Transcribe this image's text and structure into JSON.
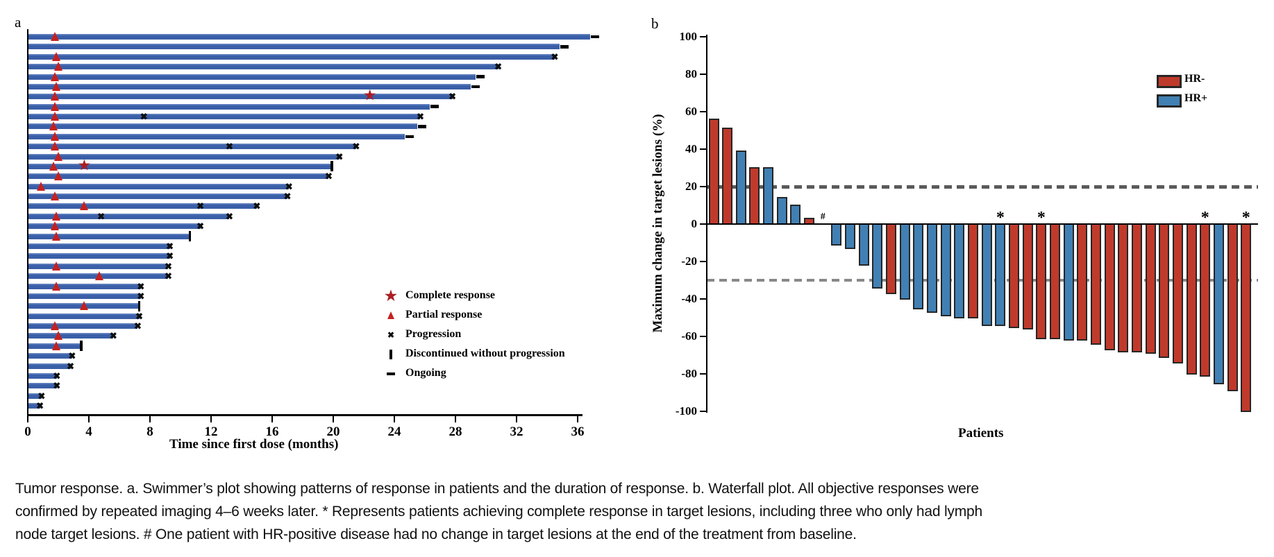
{
  "caption": {
    "lines": [
      "Tumor response. a. Swimmer’s plot showing patterns of response in patients and the duration of response. b. Waterfall plot. All objective responses were",
      "confirmed by repeated imaging 4–6 weeks later. * Represents patients achieving complete response in target lesions, including three who only had lymph",
      "node target lesions. # One patient with HR-positive disease had no change in target lesions at the end of the treatment from baseline."
    ]
  },
  "colors": {
    "swimmer_bar": "#3a5fa8",
    "hr_negative": "#c03a2b",
    "hr_positive": "#4180b4",
    "triangle_red": "#c5211f",
    "star_red": "#aa1e24",
    "black": "#0d0d0d",
    "dash_plus20": "#5a5a5a",
    "dash_minus30": "#888888",
    "bar_outline": "#262626"
  },
  "chart_data": [
    {
      "type": "swimmer-bar",
      "title": "a",
      "xlabel": "Time since first dose (months)",
      "x_ticks": [
        0,
        4,
        8,
        12,
        16,
        20,
        24,
        28,
        32,
        36
      ],
      "xlim": [
        0,
        37.5
      ],
      "legend": [
        {
          "marker": "star",
          "label": "Complete response"
        },
        {
          "marker": "triangle",
          "label": "Partial response"
        },
        {
          "marker": "x",
          "label": "Progression"
        },
        {
          "marker": "tick",
          "label": "Discontinued without progression"
        },
        {
          "marker": "dash",
          "label": "Ongoing"
        }
      ],
      "patients": [
        {
          "months": 36.8,
          "pr": 1.8,
          "end": "ongoing"
        },
        {
          "months": 34.8,
          "end": "ongoing"
        },
        {
          "months": 34.5,
          "pr": 1.9,
          "end": "progression"
        },
        {
          "months": 30.8,
          "pr": 2.0,
          "end": "progression"
        },
        {
          "months": 29.3,
          "pr": 1.8,
          "end": "ongoing"
        },
        {
          "months": 29.0,
          "pr": 1.9,
          "end": "ongoing"
        },
        {
          "months": 27.8,
          "pr": 1.8,
          "cr": 22.4,
          "end": "progression"
        },
        {
          "months": 26.3,
          "pr": 1.8,
          "end": "ongoing"
        },
        {
          "months": 25.7,
          "pr": 1.8,
          "prog_marks": [
            7.6
          ],
          "end": "progression"
        },
        {
          "months": 25.5,
          "pr": 1.7,
          "end": "ongoing"
        },
        {
          "months": 24.7,
          "pr": 1.8,
          "end": "ongoing"
        },
        {
          "months": 21.5,
          "pr": 1.8,
          "prog_marks": [
            13.2
          ],
          "end": "progression"
        },
        {
          "months": 20.4,
          "pr": 2.0,
          "end": "progression"
        },
        {
          "months": 19.9,
          "pr": 1.7,
          "cr": 3.7,
          "end": "discontinued"
        },
        {
          "months": 19.7,
          "pr": 2.0,
          "end": "progression"
        },
        {
          "months": 17.1,
          "pr": 0.9,
          "end": "progression"
        },
        {
          "months": 17.0,
          "pr": 1.8,
          "end": "progression"
        },
        {
          "months": 15.0,
          "pr": 3.7,
          "prog_marks": [
            11.3
          ],
          "end": "progression"
        },
        {
          "months": 13.2,
          "pr": 1.9,
          "prog_marks": [
            4.8
          ],
          "end": "progression"
        },
        {
          "months": 11.3,
          "pr": 1.8,
          "end": "progression"
        },
        {
          "months": 10.6,
          "pr": 1.9,
          "end": "discontinued"
        },
        {
          "months": 9.3,
          "end": "progression"
        },
        {
          "months": 9.3,
          "end": "progression"
        },
        {
          "months": 9.2,
          "pr": 1.9,
          "end": "progression"
        },
        {
          "months": 9.2,
          "pr": 4.7,
          "end": "progression"
        },
        {
          "months": 7.4,
          "pr": 1.9,
          "end": "progression"
        },
        {
          "months": 7.4,
          "end": "progression"
        },
        {
          "months": 7.3,
          "pr": 3.7,
          "end": "discontinued"
        },
        {
          "months": 7.3,
          "end": "progression"
        },
        {
          "months": 7.2,
          "pr": 1.8,
          "end": "progression"
        },
        {
          "months": 5.6,
          "pr": 2.0,
          "end": "progression"
        },
        {
          "months": 3.5,
          "pr": 1.9,
          "end": "discontinued"
        },
        {
          "months": 2.9,
          "end": "progression"
        },
        {
          "months": 2.8,
          "end": "progression"
        },
        {
          "months": 1.9,
          "end": "progression"
        },
        {
          "months": 1.9,
          "end": "progression"
        },
        {
          "months": 0.9,
          "end": "progression"
        },
        {
          "months": 0.8,
          "end": "progression"
        }
      ]
    },
    {
      "type": "bar",
      "title": "b",
      "xlabel": "Patients",
      "ylabel": "Maximum change in target lesions (%)",
      "ylim": [
        -100,
        100
      ],
      "y_ticks": [
        100,
        80,
        60,
        40,
        20,
        0,
        -20,
        -40,
        -60,
        -80,
        -100
      ],
      "reference_lines": [
        20,
        -30
      ],
      "legend": [
        {
          "label": "HR-",
          "color_key": "hr_negative"
        },
        {
          "label": "HR+",
          "color_key": "hr_positive"
        }
      ],
      "values": [
        {
          "v": 56,
          "hr": "HR-"
        },
        {
          "v": 51,
          "hr": "HR-"
        },
        {
          "v": 39,
          "hr": "HR+"
        },
        {
          "v": 30,
          "hr": "HR-"
        },
        {
          "v": 30,
          "hr": "HR+"
        },
        {
          "v": 14,
          "hr": "HR+"
        },
        {
          "v": 10,
          "hr": "HR+"
        },
        {
          "v": 3,
          "hr": "HR-"
        },
        {
          "v": 0,
          "hr": "HR+",
          "mark": "#"
        },
        {
          "v": -11,
          "hr": "HR+"
        },
        {
          "v": -13,
          "hr": "HR+"
        },
        {
          "v": -22,
          "hr": "HR+"
        },
        {
          "v": -34,
          "hr": "HR+"
        },
        {
          "v": -37,
          "hr": "HR-"
        },
        {
          "v": -40,
          "hr": "HR+"
        },
        {
          "v": -45,
          "hr": "HR+"
        },
        {
          "v": -47,
          "hr": "HR+"
        },
        {
          "v": -49,
          "hr": "HR+"
        },
        {
          "v": -50,
          "hr": "HR+"
        },
        {
          "v": -50,
          "hr": "HR-"
        },
        {
          "v": -54,
          "hr": "HR+"
        },
        {
          "v": -54,
          "hr": "HR+",
          "mark": "*"
        },
        {
          "v": -55,
          "hr": "HR-"
        },
        {
          "v": -56,
          "hr": "HR-"
        },
        {
          "v": -61,
          "hr": "HR-",
          "mark": "*"
        },
        {
          "v": -61,
          "hr": "HR-"
        },
        {
          "v": -62,
          "hr": "HR+"
        },
        {
          "v": -62,
          "hr": "HR-"
        },
        {
          "v": -64,
          "hr": "HR-"
        },
        {
          "v": -67,
          "hr": "HR-"
        },
        {
          "v": -68,
          "hr": "HR-"
        },
        {
          "v": -68,
          "hr": "HR-"
        },
        {
          "v": -69,
          "hr": "HR-"
        },
        {
          "v": -71,
          "hr": "HR-"
        },
        {
          "v": -74,
          "hr": "HR-"
        },
        {
          "v": -80,
          "hr": "HR-"
        },
        {
          "v": -81,
          "hr": "HR-",
          "mark": "*"
        },
        {
          "v": -85,
          "hr": "HR+"
        },
        {
          "v": -89,
          "hr": "HR-"
        },
        {
          "v": -100,
          "hr": "HR-",
          "mark": "*"
        }
      ]
    }
  ]
}
